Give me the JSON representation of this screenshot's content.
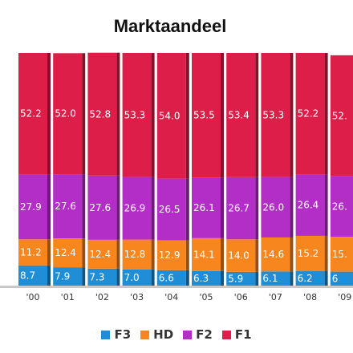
{
  "chart_data": {
    "type": "bar",
    "stacked": true,
    "title": "Marktaandeel",
    "xlabel": "",
    "ylabel": "",
    "ylim": [
      0,
      100
    ],
    "grid": false,
    "legend_position": "bottom",
    "categories": [
      "'00",
      "'01",
      "'02",
      "'03",
      "'04",
      "'05",
      "'06",
      "'07",
      "'08",
      "'09"
    ],
    "series": [
      {
        "name": "F3",
        "color": "#1f8ed6",
        "values": [
          8.7,
          7.9,
          7.3,
          7.0,
          6.6,
          6.3,
          5.9,
          6.1,
          6.2,
          6
        ]
      },
      {
        "name": "HD",
        "color": "#f7861e",
        "values": [
          11.2,
          12.4,
          12.4,
          12.8,
          12.9,
          14.1,
          14.0,
          14.6,
          15.2,
          15
        ]
      },
      {
        "name": "F2",
        "color": "#b22ec7",
        "values": [
          27.9,
          27.6,
          27.6,
          26.9,
          26.5,
          26.1,
          26.7,
          26.0,
          26.4,
          26
        ]
      },
      {
        "name": "F1",
        "color": "#dc1e48",
        "values": [
          52.2,
          52.0,
          52.8,
          53.3,
          54.0,
          53.5,
          53.4,
          53.3,
          52.2,
          52
        ]
      }
    ],
    "value_labels": {
      "F3": [
        "8.7",
        "7.9",
        "7.3",
        "7.0",
        "6.6",
        "6.3",
        "5.9",
        "6.1",
        "6.2",
        "6"
      ],
      "HD": [
        "11.2",
        "12.4",
        "12.4",
        "12.8",
        "12.9",
        "14.1",
        "14.0",
        "14.6",
        "15.2",
        "15."
      ],
      "F2": [
        "27.9",
        "27.6",
        "27.6",
        "26.9",
        "26.5",
        "26.1",
        "26.7",
        "26.0",
        "26.4",
        "26."
      ],
      "F1": [
        "52.2",
        "52.0",
        "52.8",
        "53.3",
        "54.0",
        "53.5",
        "53.4",
        "53.3",
        "52.2",
        "52."
      ]
    }
  }
}
